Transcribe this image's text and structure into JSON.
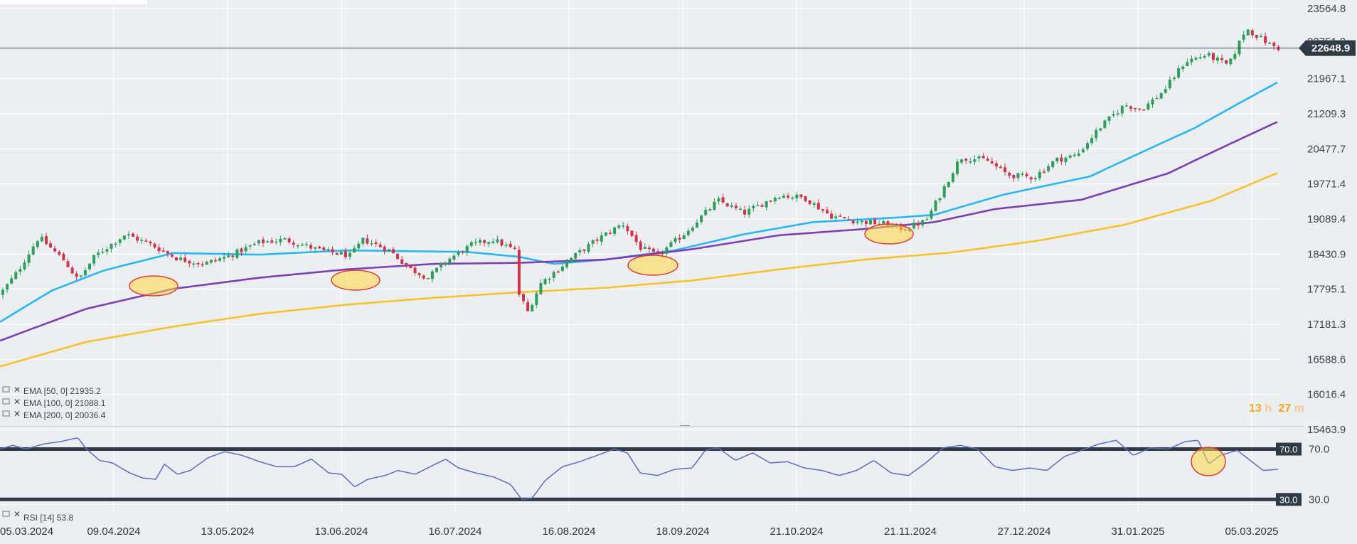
{
  "chart_data": {
    "type": "candlestick",
    "price_axis": {
      "ticks": [
        23564.8,
        21967.1,
        21209.3,
        20477.7,
        19771.4,
        19089.4,
        18430.9,
        17795.1,
        17181.3,
        16588.6,
        16016.4,
        15463.9
      ],
      "ylim": [
        15463.9,
        23764.8
      ],
      "scale": "log"
    },
    "current_price": 22648.9,
    "hidden_tick": "22751.2",
    "countdown": {
      "hours": "13",
      "h": "h",
      "minutes": "27",
      "m": "m"
    },
    "date_labels": [
      "05.03.2024",
      "09.04.2024",
      "13.05.2024",
      "13.06.2024",
      "16.07.2024",
      "16.08.2024",
      "18.09.2024",
      "21.10.2024",
      "21.11.2024",
      "27.12.2024",
      "31.01.2025",
      "05.03.2025"
    ],
    "price_keyframes": [
      [
        0,
        17700
      ],
      [
        20,
        18100
      ],
      [
        45,
        18750
      ],
      [
        75,
        18300
      ],
      [
        90,
        17950
      ],
      [
        110,
        18400
      ],
      [
        145,
        18800
      ],
      [
        175,
        18600
      ],
      [
        205,
        18350
      ],
      [
        235,
        18250
      ],
      [
        265,
        18400
      ],
      [
        300,
        18650
      ],
      [
        330,
        18700
      ],
      [
        370,
        18500
      ],
      [
        405,
        18400
      ],
      [
        420,
        18700
      ],
      [
        450,
        18500
      ],
      [
        475,
        18150
      ],
      [
        495,
        18000
      ],
      [
        515,
        18300
      ],
      [
        545,
        18600
      ],
      [
        570,
        18700
      ],
      [
        595,
        18500
      ],
      [
        600,
        17700
      ],
      [
        610,
        17400
      ],
      [
        625,
        17900
      ],
      [
        660,
        18350
      ],
      [
        690,
        18700
      ],
      [
        720,
        19000
      ],
      [
        740,
        18550
      ],
      [
        760,
        18400
      ],
      [
        790,
        18800
      ],
      [
        830,
        19450
      ],
      [
        860,
        19200
      ],
      [
        900,
        19550
      ],
      [
        930,
        19500
      ],
      [
        960,
        19150
      ],
      [
        990,
        19050
      ],
      [
        1020,
        19000
      ],
      [
        1045,
        18900
      ],
      [
        1070,
        19050
      ],
      [
        1085,
        19500
      ],
      [
        1110,
        20300
      ],
      [
        1140,
        20250
      ],
      [
        1165,
        19950
      ],
      [
        1195,
        19900
      ],
      [
        1220,
        20250
      ],
      [
        1245,
        20350
      ],
      [
        1270,
        20900
      ],
      [
        1300,
        21400
      ],
      [
        1320,
        21300
      ],
      [
        1345,
        21700
      ],
      [
        1370,
        22350
      ],
      [
        1395,
        22500
      ],
      [
        1420,
        22250
      ],
      [
        1440,
        23100
      ],
      [
        1455,
        22900
      ],
      [
        1470,
        22700
      ],
      [
        1478,
        22650
      ]
    ],
    "indicators": [
      {
        "label": "EMA [50, 0]",
        "value": "21935.2",
        "color": "#29b6f6",
        "values": [
          [
            0,
            17220
          ],
          [
            60,
            17770
          ],
          [
            120,
            18130
          ],
          [
            200,
            18450
          ],
          [
            300,
            18420
          ],
          [
            400,
            18500
          ],
          [
            540,
            18470
          ],
          [
            600,
            18380
          ],
          [
            640,
            18250
          ],
          [
            700,
            18330
          ],
          [
            780,
            18500
          ],
          [
            860,
            18800
          ],
          [
            940,
            19030
          ],
          [
            1040,
            19120
          ],
          [
            1080,
            19170
          ],
          [
            1160,
            19560
          ],
          [
            1260,
            19920
          ],
          [
            1380,
            20900
          ],
          [
            1478,
            21900
          ]
        ]
      },
      {
        "label": "EMA [100, 0]",
        "value": "21088.1",
        "color": "#7e3fb5",
        "values": [
          [
            0,
            16900
          ],
          [
            100,
            17450
          ],
          [
            200,
            17800
          ],
          [
            300,
            18000
          ],
          [
            400,
            18150
          ],
          [
            500,
            18250
          ],
          [
            600,
            18270
          ],
          [
            700,
            18330
          ],
          [
            800,
            18520
          ],
          [
            900,
            18780
          ],
          [
            1000,
            18900
          ],
          [
            1080,
            19030
          ],
          [
            1150,
            19280
          ],
          [
            1250,
            19460
          ],
          [
            1350,
            19980
          ],
          [
            1478,
            21050
          ]
        ]
      },
      {
        "label": "EMA [200, 0]",
        "value": "20036.4",
        "color": "#fbc02d",
        "values": [
          [
            0,
            16470
          ],
          [
            100,
            16880
          ],
          [
            200,
            17140
          ],
          [
            300,
            17360
          ],
          [
            400,
            17520
          ],
          [
            500,
            17640
          ],
          [
            600,
            17740
          ],
          [
            700,
            17820
          ],
          [
            800,
            17950
          ],
          [
            900,
            18150
          ],
          [
            1000,
            18330
          ],
          [
            1100,
            18460
          ],
          [
            1200,
            18680
          ],
          [
            1300,
            18980
          ],
          [
            1400,
            19440
          ],
          [
            1478,
            20000
          ]
        ]
      }
    ],
    "rsi": {
      "label": "RSI [14]",
      "value": "53.8",
      "levels": [
        "70.0",
        "30.0"
      ],
      "ylim": [
        20,
        85
      ],
      "values": [
        [
          0,
          70
        ],
        [
          15,
          73
        ],
        [
          30,
          70
        ],
        [
          50,
          74
        ],
        [
          70,
          76
        ],
        [
          90,
          79
        ],
        [
          100,
          70
        ],
        [
          115,
          61
        ],
        [
          130,
          59
        ],
        [
          150,
          51
        ],
        [
          165,
          47
        ],
        [
          180,
          46
        ],
        [
          190,
          58
        ],
        [
          205,
          50
        ],
        [
          220,
          53
        ],
        [
          240,
          63
        ],
        [
          260,
          68
        ],
        [
          280,
          65
        ],
        [
          300,
          60
        ],
        [
          320,
          56
        ],
        [
          340,
          56
        ],
        [
          360,
          62
        ],
        [
          380,
          51
        ],
        [
          395,
          50
        ],
        [
          410,
          40
        ],
        [
          425,
          46
        ],
        [
          445,
          49
        ],
        [
          460,
          53
        ],
        [
          480,
          50
        ],
        [
          500,
          57
        ],
        [
          515,
          62
        ],
        [
          530,
          55
        ],
        [
          550,
          51
        ],
        [
          570,
          48
        ],
        [
          590,
          42
        ],
        [
          603,
          30
        ],
        [
          615,
          31
        ],
        [
          630,
          45
        ],
        [
          650,
          56
        ],
        [
          670,
          60
        ],
        [
          690,
          65
        ],
        [
          710,
          70
        ],
        [
          725,
          67
        ],
        [
          740,
          51
        ],
        [
          760,
          49
        ],
        [
          780,
          54
        ],
        [
          800,
          55
        ],
        [
          815,
          69
        ],
        [
          830,
          71
        ],
        [
          850,
          61
        ],
        [
          870,
          67
        ],
        [
          890,
          59
        ],
        [
          910,
          60
        ],
        [
          930,
          55
        ],
        [
          950,
          53
        ],
        [
          970,
          49
        ],
        [
          990,
          53
        ],
        [
          1010,
          61
        ],
        [
          1030,
          51
        ],
        [
          1050,
          49
        ],
        [
          1070,
          59
        ],
        [
          1090,
          71
        ],
        [
          1110,
          73
        ],
        [
          1130,
          70
        ],
        [
          1150,
          56
        ],
        [
          1170,
          53
        ],
        [
          1190,
          55
        ],
        [
          1210,
          53
        ],
        [
          1230,
          64
        ],
        [
          1250,
          69
        ],
        [
          1270,
          74
        ],
        [
          1290,
          77
        ],
        [
          1310,
          65
        ],
        [
          1330,
          71
        ],
        [
          1350,
          70
        ],
        [
          1370,
          76
        ],
        [
          1385,
          77
        ],
        [
          1397,
          58
        ],
        [
          1410,
          65
        ],
        [
          1430,
          69
        ],
        [
          1445,
          61
        ],
        [
          1460,
          53
        ],
        [
          1478,
          54
        ]
      ]
    }
  }
}
